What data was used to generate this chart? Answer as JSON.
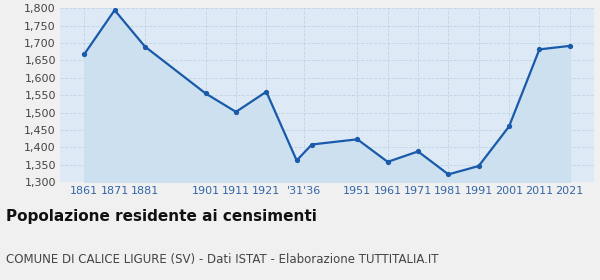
{
  "years": [
    1861,
    1871,
    1881,
    1901,
    1911,
    1921,
    1931,
    1936,
    1951,
    1961,
    1971,
    1981,
    1991,
    2001,
    2011,
    2021
  ],
  "population": [
    1668,
    1795,
    1690,
    1555,
    1502,
    1560,
    1362,
    1408,
    1423,
    1358,
    1388,
    1322,
    1346,
    1460,
    1682,
    1692
  ],
  "xtick_positions": [
    1861,
    1871,
    1881,
    1901,
    1911,
    1921,
    1933.5,
    1951,
    1961,
    1971,
    1981,
    1991,
    2001,
    2011,
    2021
  ],
  "xtick_labels": [
    "1861",
    "1871",
    "1881",
    "1901",
    "1911",
    "1921",
    "'31'36",
    "1951",
    "1961",
    "1971",
    "1981",
    "1991",
    "2001",
    "2011",
    "2021"
  ],
  "ylim": [
    1300,
    1800
  ],
  "yticks": [
    1300,
    1350,
    1400,
    1450,
    1500,
    1550,
    1600,
    1650,
    1700,
    1750,
    1800
  ],
  "line_color": "#1a5aaa",
  "fill_color": "#cce0f0",
  "marker_color": "#1a5aaa",
  "fig_bg_color": "#f0f0f0",
  "plot_bg_color": "#ddeaf5",
  "grid_color": "#b8cfe0",
  "title": "Popolazione residente ai censimenti",
  "subtitle": "COMUNE DI CALICE LIGURE (SV) - Dati ISTAT - Elaborazione TUTTITALIA.IT",
  "title_fontsize": 11,
  "subtitle_fontsize": 8.5,
  "tick_fontsize": 8,
  "xlim_left": 1853,
  "xlim_right": 2029
}
